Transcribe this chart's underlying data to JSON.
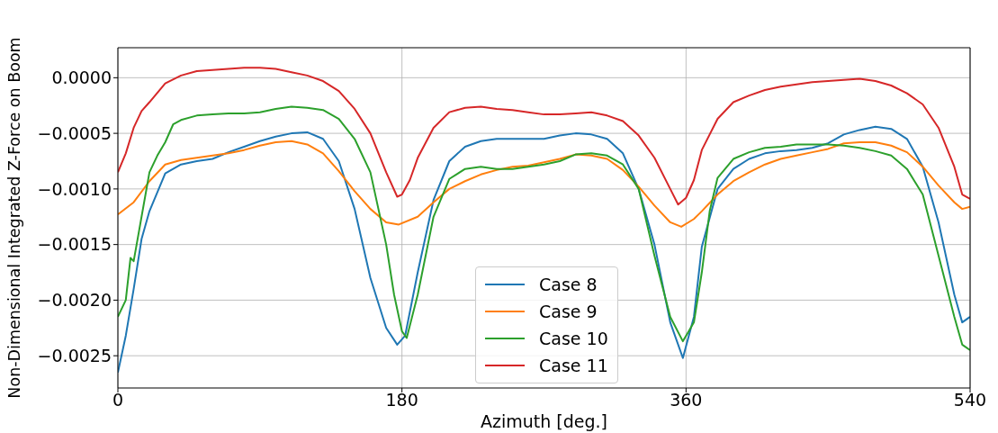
{
  "chart_data": {
    "type": "line",
    "xlabel": "Azimuth [deg.]",
    "ylabel": "Non-Dimensional Integrated Z-Force on Boom",
    "xlim": [
      0,
      540
    ],
    "xticks": [
      0,
      180,
      360,
      540
    ],
    "ylim": [
      -0.00279,
      0.00027
    ],
    "yticks": [
      {
        "value": 0,
        "label": "0.0000"
      },
      {
        "value": -0.0005,
        "label": "−0.0005"
      },
      {
        "value": -0.001,
        "label": "−0.0010"
      },
      {
        "value": -0.0015,
        "label": "−0.0015"
      },
      {
        "value": -0.002,
        "label": "−0.0020"
      },
      {
        "value": -0.0025,
        "label": "−0.0025"
      }
    ],
    "grid": true,
    "legend": "bottom",
    "line_style": "solid",
    "marker": "none",
    "series": [
      {
        "name": "Case 8",
        "color": "#1f77b4",
        "x": [
          0,
          5,
          10,
          15,
          20,
          30,
          40,
          50,
          60,
          70,
          80,
          90,
          100,
          110,
          120,
          130,
          140,
          150,
          160,
          170,
          177,
          182,
          190,
          200,
          210,
          220,
          230,
          240,
          250,
          260,
          270,
          280,
          290,
          300,
          310,
          320,
          330,
          340,
          350,
          358,
          365,
          370,
          380,
          390,
          400,
          410,
          420,
          430,
          440,
          450,
          460,
          470,
          480,
          490,
          500,
          510,
          520,
          530,
          535,
          540
        ],
        "values": [
          -0.00265,
          -0.00232,
          -0.0019,
          -0.00145,
          -0.0012,
          -0.00086,
          -0.00078,
          -0.00075,
          -0.00073,
          -0.00067,
          -0.00062,
          -0.00057,
          -0.00053,
          -0.0005,
          -0.00049,
          -0.00055,
          -0.00075,
          -0.00118,
          -0.0018,
          -0.00225,
          -0.0024,
          -0.00232,
          -0.00175,
          -0.0011,
          -0.00075,
          -0.00062,
          -0.00057,
          -0.00055,
          -0.00055,
          -0.00055,
          -0.00055,
          -0.00052,
          -0.0005,
          -0.00051,
          -0.00055,
          -0.00068,
          -0.001,
          -0.0015,
          -0.0022,
          -0.00252,
          -0.00215,
          -0.00152,
          -0.001,
          -0.00082,
          -0.00073,
          -0.00068,
          -0.00066,
          -0.00065,
          -0.00063,
          -0.00059,
          -0.00051,
          -0.00047,
          -0.00044,
          -0.00046,
          -0.00055,
          -0.0008,
          -0.0013,
          -0.00195,
          -0.0022,
          -0.00215
        ]
      },
      {
        "name": "Case 9",
        "color": "#ff7f0e",
        "x": [
          0,
          10,
          20,
          30,
          40,
          50,
          60,
          70,
          80,
          90,
          100,
          110,
          120,
          130,
          140,
          150,
          160,
          170,
          178,
          190,
          200,
          210,
          220,
          230,
          240,
          250,
          260,
          270,
          280,
          290,
          300,
          310,
          320,
          330,
          340,
          350,
          357,
          365,
          370,
          380,
          390,
          400,
          410,
          420,
          430,
          440,
          450,
          460,
          470,
          480,
          490,
          500,
          510,
          520,
          530,
          535,
          540
        ],
        "values": [
          -0.00123,
          -0.00112,
          -0.00093,
          -0.00078,
          -0.00074,
          -0.00072,
          -0.0007,
          -0.00068,
          -0.00065,
          -0.00061,
          -0.00058,
          -0.00057,
          -0.0006,
          -0.00068,
          -0.00084,
          -0.00102,
          -0.00118,
          -0.0013,
          -0.00132,
          -0.00125,
          -0.00112,
          -0.001,
          -0.00093,
          -0.00087,
          -0.00083,
          -0.0008,
          -0.00079,
          -0.00076,
          -0.00073,
          -0.00069,
          -0.0007,
          -0.00073,
          -0.00083,
          -0.00098,
          -0.00115,
          -0.0013,
          -0.00134,
          -0.00127,
          -0.0012,
          -0.00105,
          -0.00093,
          -0.00085,
          -0.00078,
          -0.00073,
          -0.0007,
          -0.00067,
          -0.00064,
          -0.00059,
          -0.00058,
          -0.00058,
          -0.00061,
          -0.00067,
          -0.0008,
          -0.00097,
          -0.00112,
          -0.00118,
          -0.00116
        ]
      },
      {
        "name": "Case 10",
        "color": "#2ca02c",
        "x": [
          0,
          5,
          8,
          10,
          15,
          20,
          25,
          30,
          35,
          40,
          50,
          60,
          70,
          80,
          90,
          100,
          110,
          120,
          130,
          140,
          150,
          160,
          170,
          175,
          180,
          183,
          190,
          200,
          210,
          220,
          230,
          240,
          250,
          260,
          270,
          280,
          290,
          300,
          310,
          320,
          330,
          340,
          350,
          358,
          365,
          370,
          375,
          380,
          390,
          400,
          410,
          420,
          430,
          440,
          450,
          460,
          470,
          480,
          490,
          500,
          510,
          520,
          530,
          535,
          540
        ],
        "values": [
          -0.00215,
          -0.002,
          -0.00162,
          -0.00165,
          -0.00125,
          -0.00085,
          -0.0007,
          -0.00058,
          -0.00042,
          -0.00038,
          -0.00034,
          -0.00033,
          -0.00032,
          -0.00032,
          -0.00031,
          -0.00028,
          -0.00026,
          -0.00027,
          -0.00029,
          -0.00037,
          -0.00055,
          -0.00085,
          -0.0015,
          -0.00195,
          -0.00228,
          -0.00234,
          -0.00195,
          -0.00125,
          -0.00091,
          -0.00082,
          -0.0008,
          -0.00082,
          -0.00082,
          -0.0008,
          -0.00078,
          -0.00075,
          -0.00069,
          -0.00068,
          -0.0007,
          -0.00078,
          -0.001,
          -0.0016,
          -0.00215,
          -0.00237,
          -0.0022,
          -0.00175,
          -0.0012,
          -0.0009,
          -0.00073,
          -0.00067,
          -0.00063,
          -0.00062,
          -0.0006,
          -0.0006,
          -0.0006,
          -0.00061,
          -0.00063,
          -0.00066,
          -0.0007,
          -0.00082,
          -0.00105,
          -0.0016,
          -0.00215,
          -0.0024,
          -0.00245
        ]
      },
      {
        "name": "Case 11",
        "color": "#d62728",
        "x": [
          0,
          5,
          10,
          15,
          20,
          30,
          40,
          50,
          60,
          70,
          80,
          90,
          100,
          110,
          120,
          130,
          140,
          150,
          160,
          170,
          177,
          180,
          185,
          190,
          200,
          210,
          220,
          230,
          240,
          250,
          260,
          270,
          280,
          290,
          300,
          310,
          320,
          330,
          340,
          350,
          355,
          360,
          365,
          370,
          380,
          390,
          400,
          410,
          420,
          430,
          440,
          450,
          460,
          470,
          480,
          490,
          500,
          510,
          520,
          530,
          535,
          540
        ],
        "values": [
          -0.00085,
          -0.00068,
          -0.00045,
          -0.0003,
          -0.00022,
          -5e-05,
          2e-05,
          6e-05,
          7e-05,
          8e-05,
          9e-05,
          9e-05,
          8e-05,
          5e-05,
          2e-05,
          -3e-05,
          -0.00012,
          -0.00028,
          -0.0005,
          -0.00085,
          -0.00107,
          -0.00105,
          -0.00092,
          -0.00072,
          -0.00045,
          -0.00031,
          -0.00027,
          -0.00026,
          -0.00028,
          -0.00029,
          -0.00031,
          -0.00033,
          -0.00033,
          -0.00032,
          -0.00031,
          -0.00034,
          -0.00039,
          -0.00052,
          -0.00072,
          -0.001,
          -0.00114,
          -0.00108,
          -0.00092,
          -0.00065,
          -0.00037,
          -0.00022,
          -0.00016,
          -0.00011,
          -8e-05,
          -6e-05,
          -4e-05,
          -3e-05,
          -2e-05,
          -1e-05,
          -3e-05,
          -7e-05,
          -0.00014,
          -0.00024,
          -0.00045,
          -0.0008,
          -0.00105,
          -0.00109
        ]
      }
    ]
  }
}
